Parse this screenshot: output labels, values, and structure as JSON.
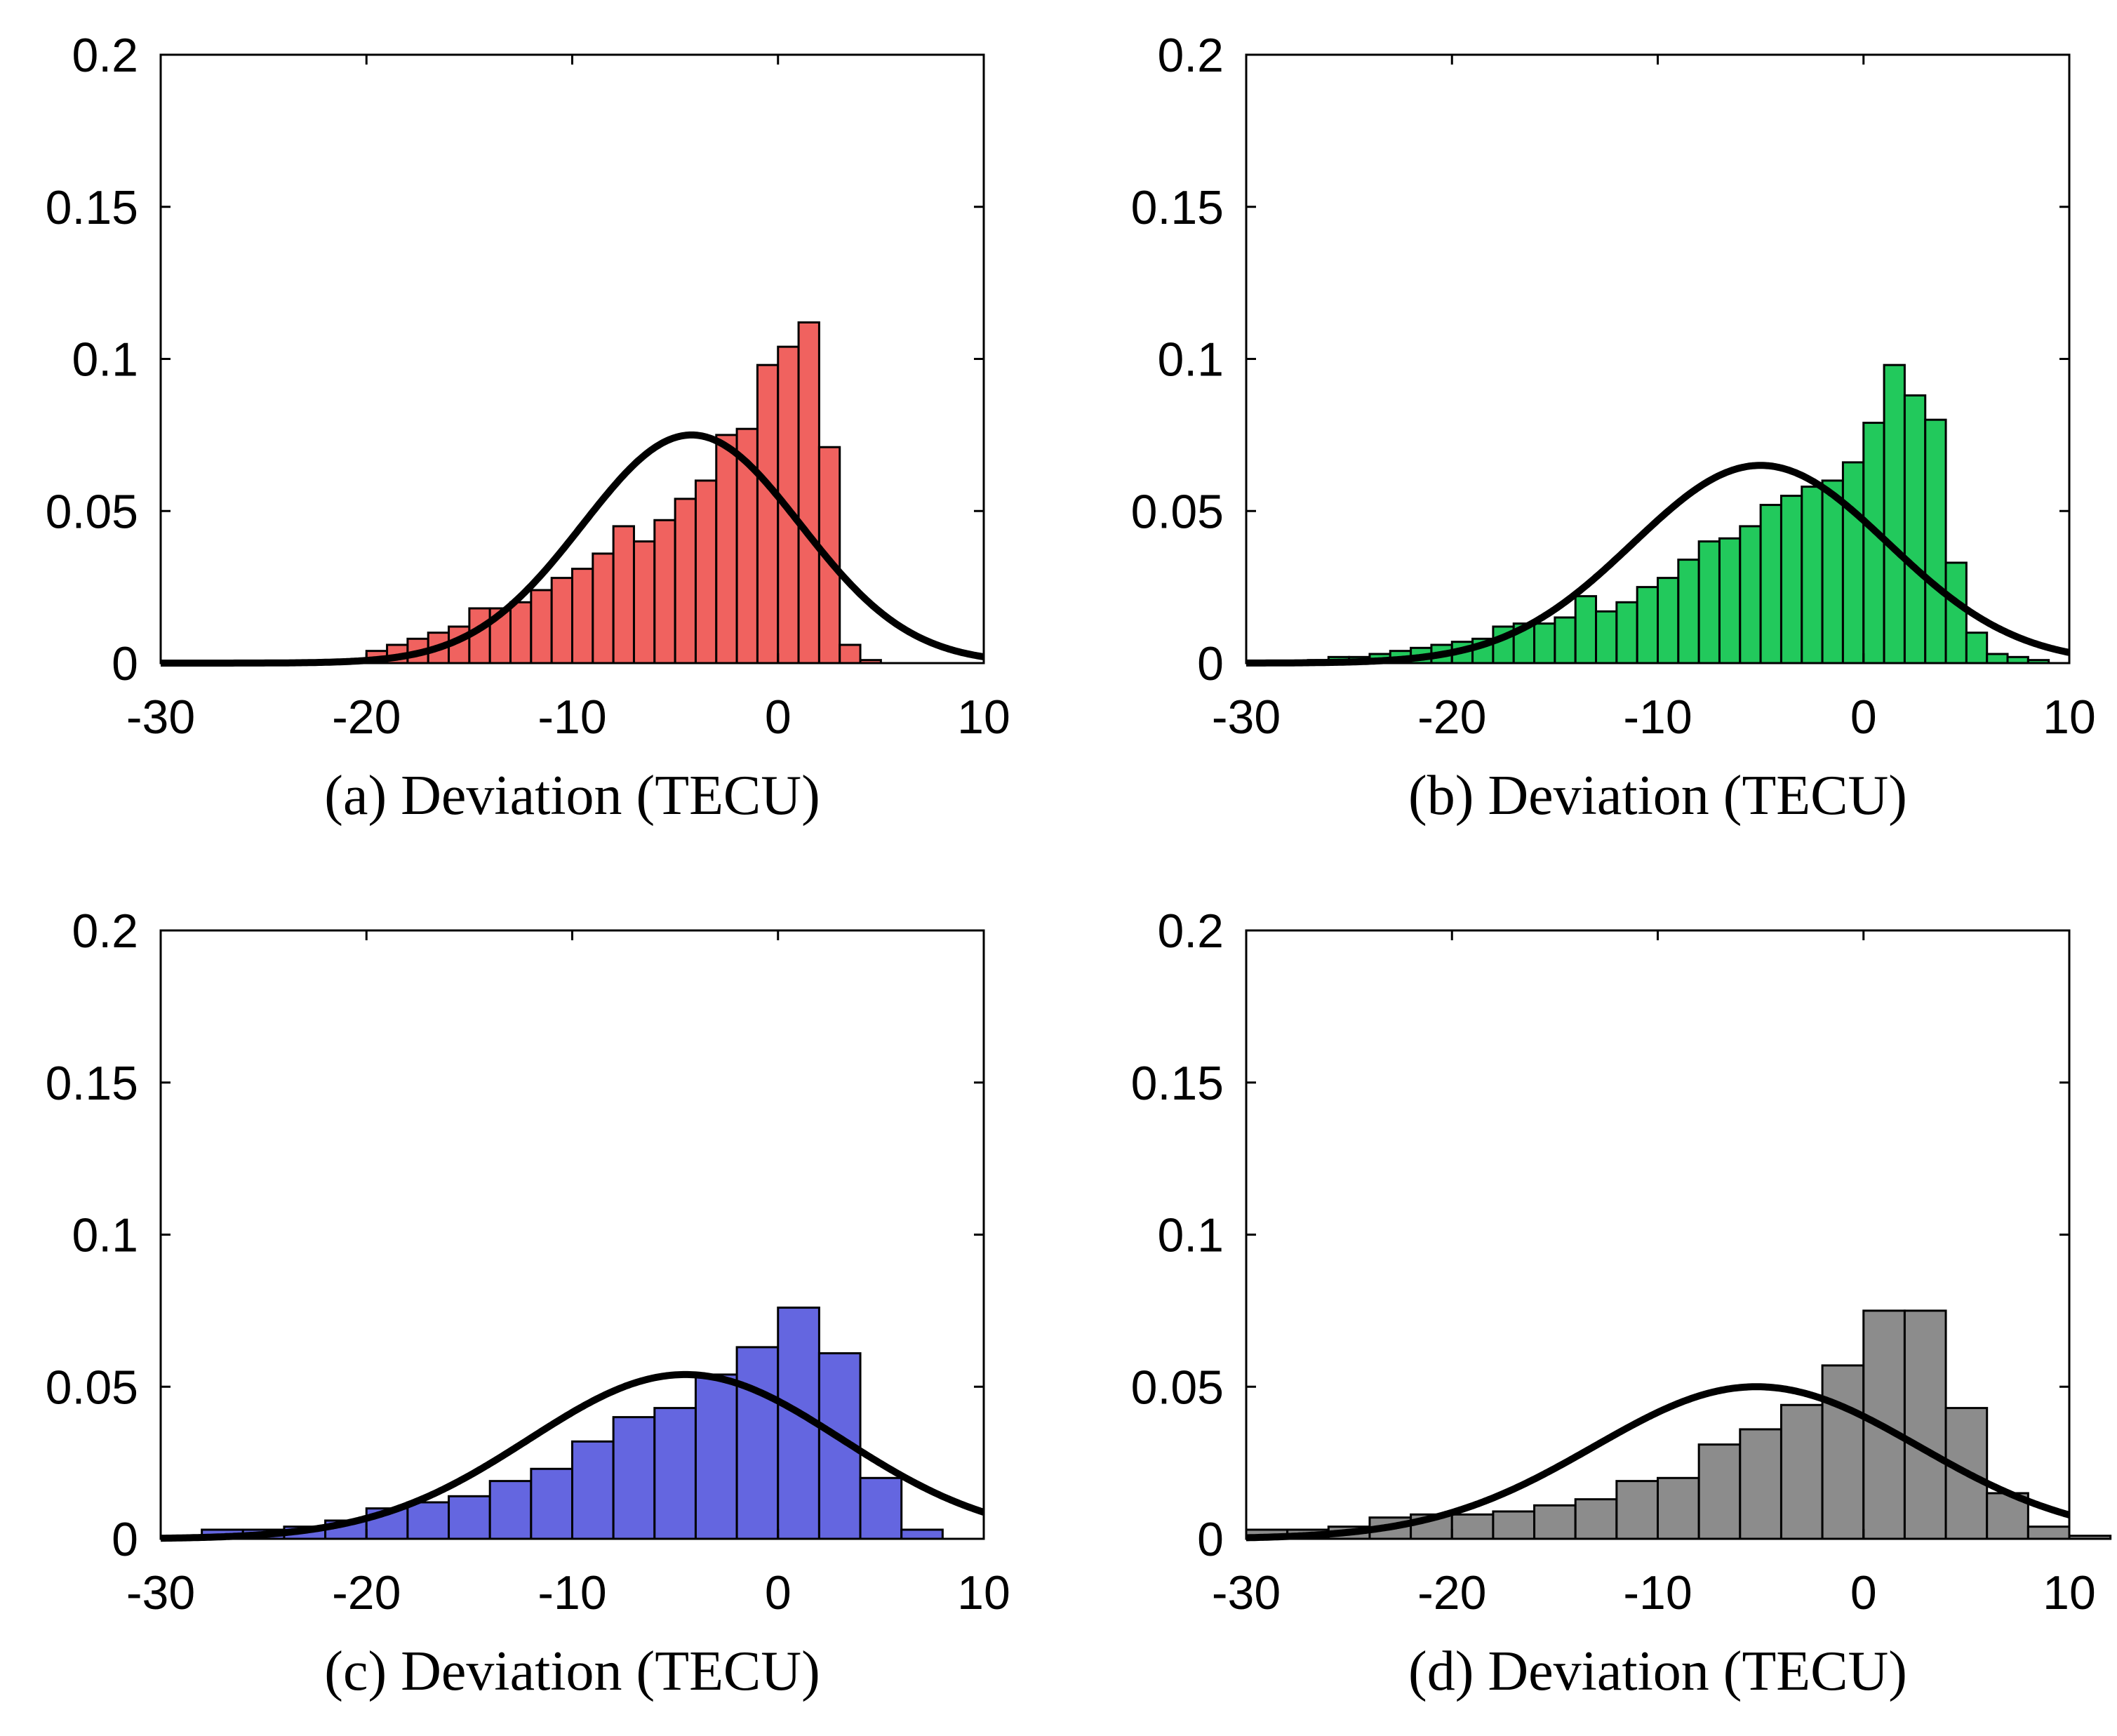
{
  "chart_data": [
    {
      "type": "bar",
      "panel": "a",
      "xlabel": "(a) Deviation (TECU)",
      "xlim": [
        -30,
        10
      ],
      "ylim": [
        0,
        0.2
      ],
      "xticks": [
        "-30",
        "-20",
        "-10",
        "0",
        "10"
      ],
      "yticks": [
        "0",
        "0.05",
        "0.1",
        "0.15",
        "0.2"
      ],
      "bar_color": "#f0625f",
      "bins": {
        "start": -21,
        "width": 1
      },
      "values": [
        0.001,
        0.004,
        0.006,
        0.008,
        0.01,
        0.012,
        0.018,
        0.018,
        0.02,
        0.024,
        0.028,
        0.031,
        0.036,
        0.045,
        0.04,
        0.047,
        0.054,
        0.06,
        0.075,
        0.077,
        0.098,
        0.104,
        0.112,
        0.071,
        0.006,
        0.001
      ],
      "fit": {
        "mean": -4.2,
        "peak": 0.075,
        "sigma": 5.3
      },
      "grid": false
    },
    {
      "type": "bar",
      "panel": "b",
      "xlabel": "(b) Deviation (TECU)",
      "xlim": [
        -30,
        10
      ],
      "ylim": [
        0,
        0.2
      ],
      "xticks": [
        "-30",
        "-20",
        "-10",
        "0",
        "10"
      ],
      "yticks": [
        "0",
        "0.05",
        "0.1",
        "0.15",
        "0.2"
      ],
      "bar_color": "#22c95c",
      "bins": {
        "start": -27,
        "width": 1
      },
      "values": [
        0.001,
        0.002,
        0.002,
        0.003,
        0.004,
        0.005,
        0.006,
        0.007,
        0.008,
        0.012,
        0.013,
        0.013,
        0.015,
        0.022,
        0.017,
        0.02,
        0.025,
        0.028,
        0.034,
        0.04,
        0.041,
        0.045,
        0.052,
        0.055,
        0.058,
        0.06,
        0.066,
        0.079,
        0.098,
        0.088,
        0.08,
        0.033,
        0.01,
        0.003,
        0.002,
        0.001
      ],
      "fit": {
        "mean": -5.0,
        "peak": 0.065,
        "sigma": 6.2
      },
      "grid": false
    },
    {
      "type": "bar",
      "panel": "c",
      "xlabel": "(c) Deviation (TECU)",
      "xlim": [
        -30,
        10
      ],
      "ylim": [
        0,
        0.2
      ],
      "xticks": [
        "-30",
        "-20",
        "-10",
        "0",
        "10"
      ],
      "yticks": [
        "0",
        "0.05",
        "0.1",
        "0.15",
        "0.2"
      ],
      "bar_color": "#6466e0",
      "bins": {
        "start": -28,
        "width": 2
      },
      "values": [
        0.003,
        0.003,
        0.004,
        0.006,
        0.01,
        0.012,
        0.014,
        0.019,
        0.023,
        0.032,
        0.04,
        0.043,
        0.054,
        0.063,
        0.076,
        0.061,
        0.02,
        0.003
      ],
      "fit": {
        "mean": -4.5,
        "peak": 0.054,
        "sigma": 7.6
      },
      "grid": false
    },
    {
      "type": "bar",
      "panel": "d",
      "xlabel": "(d) Deviation (TECU)",
      "xlim": [
        -30,
        10
      ],
      "ylim": [
        0,
        0.2
      ],
      "xticks": [
        "-30",
        "-20",
        "-10",
        "0",
        "10"
      ],
      "yticks": [
        "0",
        "0.05",
        "0.1",
        "0.15",
        "0.2"
      ],
      "bar_color": "#8c8c8c",
      "bins": {
        "start": -30,
        "width": 2
      },
      "values": [
        0.003,
        0.003,
        0.004,
        0.007,
        0.008,
        0.008,
        0.009,
        0.011,
        0.013,
        0.019,
        0.02,
        0.031,
        0.036,
        0.044,
        0.057,
        0.075,
        0.075,
        0.043,
        0.015,
        0.004,
        0.001
      ],
      "fit": {
        "mean": -5.2,
        "peak": 0.05,
        "sigma": 7.9
      },
      "grid": false
    }
  ]
}
